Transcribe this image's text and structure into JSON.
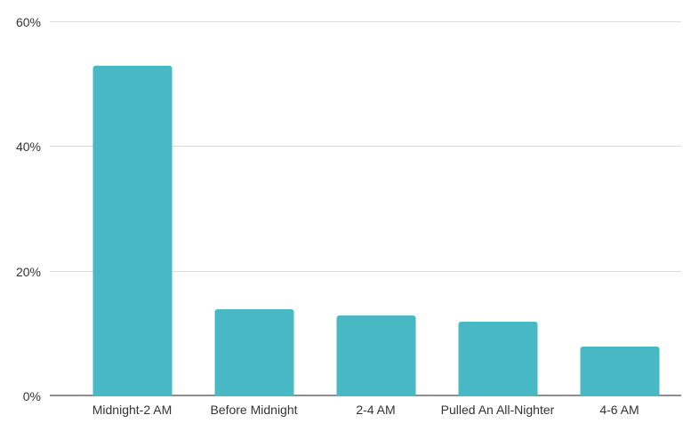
{
  "chart_data": {
    "type": "bar",
    "title": "",
    "xlabel": "",
    "ylabel": "",
    "categories": [
      "Midnight-2 AM",
      "Before Midnight",
      "2-4 AM",
      "Pulled An All-Nighter",
      "4-6 AM"
    ],
    "values": [
      53,
      14,
      13,
      12,
      8
    ],
    "value_unit": "%",
    "ylim": [
      0,
      60
    ],
    "yticks": [
      0,
      20,
      40,
      60
    ],
    "ytick_labels": [
      "0%",
      "20%",
      "40%",
      "60%"
    ],
    "grid": true,
    "legend": "none",
    "colors": {
      "bar": "#48b9c4",
      "gridline": "#dcdcdc",
      "axis_line": "#8f8f8f",
      "label_text": "#333333",
      "background": "#ffffff"
    }
  }
}
